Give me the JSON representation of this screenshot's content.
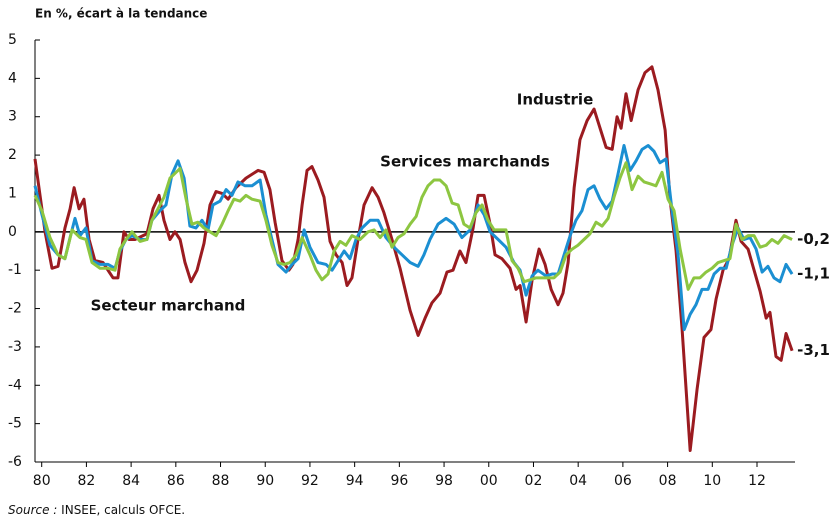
{
  "chart_data": {
    "type": "line",
    "title": "En %, écart à la tendance",
    "source_prefix": "Source :",
    "source": "INSEE, calculs OFCE.",
    "xlim": [
      1979.7,
      2013.7
    ],
    "xticks": [
      {
        "value": 1980,
        "label": "80"
      },
      {
        "value": 1982,
        "label": "82"
      },
      {
        "value": 1984,
        "label": "84"
      },
      {
        "value": 1986,
        "label": "86"
      },
      {
        "value": 1988,
        "label": "88"
      },
      {
        "value": 1990,
        "label": "90"
      },
      {
        "value": 1992,
        "label": "92"
      },
      {
        "value": 1994,
        "label": "94"
      },
      {
        "value": 1996,
        "label": "96"
      },
      {
        "value": 1998,
        "label": "98"
      },
      {
        "value": 2000,
        "label": "00"
      },
      {
        "value": 2002,
        "label": "02"
      },
      {
        "value": 2004,
        "label": "04"
      },
      {
        "value": 2006,
        "label": "06"
      },
      {
        "value": 2008,
        "label": "08"
      },
      {
        "value": 2010,
        "label": "10"
      },
      {
        "value": 2012,
        "label": "12"
      }
    ],
    "ylim": [
      -6,
      5
    ],
    "yticks": [
      5,
      4,
      3,
      2,
      1,
      0,
      -1,
      -2,
      -3,
      -4,
      -5,
      -6
    ],
    "zero_line": true,
    "grid": false,
    "series": [
      {
        "name": "Industrie",
        "color": "#9b1b20",
        "end_label": "-3,1",
        "x": [
          1979.7,
          1980.15,
          1980.46,
          1980.73,
          1981.04,
          1981.27,
          1981.45,
          1981.67,
          1981.89,
          1982.12,
          1982.38,
          1982.74,
          1983.19,
          1983.41,
          1983.68,
          1983.91,
          1984.17,
          1984.71,
          1984.98,
          1985.25,
          1985.47,
          1985.74,
          1985.96,
          1986.19,
          1986.41,
          1986.68,
          1986.95,
          1987.26,
          1987.53,
          1987.8,
          1988.07,
          1988.34,
          1988.69,
          1989.14,
          1989.68,
          1989.95,
          1990.21,
          1990.44,
          1990.75,
          1991.06,
          1991.24,
          1991.47,
          1991.65,
          1991.87,
          1992.09,
          1992.36,
          1992.63,
          1992.9,
          1993.17,
          1993.44,
          1993.66,
          1993.88,
          1994.15,
          1994.42,
          1994.78,
          1995.05,
          1995.31,
          1995.67,
          1996.03,
          1996.48,
          1996.84,
          1997.15,
          1997.46,
          1997.82,
          1998.13,
          1998.4,
          1998.71,
          1998.98,
          1999.3,
          1999.52,
          1999.79,
          2000.06,
          2000.28,
          2000.59,
          2000.95,
          2001.22,
          2001.4,
          2001.67,
          2001.94,
          2002.25,
          2002.52,
          2002.79,
          2003.1,
          2003.32,
          2003.55,
          2003.82,
          2004.08,
          2004.4,
          2004.71,
          2004.98,
          2005.25,
          2005.52,
          2005.74,
          2005.92,
          2006.14,
          2006.37,
          2006.68,
          2006.99,
          2007.3,
          2007.57,
          2007.89,
          2008.11,
          2008.38,
          2008.65,
          2009.01,
          2009.32,
          2009.63,
          2009.94,
          2010.17,
          2010.48,
          2010.75,
          2011.06,
          2011.29,
          2011.6,
          2011.82,
          2012.14,
          2012.41,
          2012.58,
          2012.85,
          2013.08,
          2013.3,
          2013.57
        ],
        "values": [
          1.9,
          0,
          -0.95,
          -0.9,
          0.1,
          0.6,
          1.15,
          0.6,
          0.85,
          -0.2,
          -0.75,
          -0.8,
          -1.2,
          -1.2,
          0,
          -0.2,
          -0.2,
          -0.05,
          0.6,
          0.95,
          0.3,
          -0.2,
          0,
          -0.2,
          -0.8,
          -1.3,
          -1,
          -0.3,
          0.7,
          1.05,
          1,
          0.85,
          1.15,
          1.4,
          1.6,
          1.55,
          1.1,
          0.25,
          -0.75,
          -1,
          -0.85,
          -0.2,
          0.7,
          1.6,
          1.7,
          1.35,
          0.9,
          -0.25,
          -0.6,
          -0.8,
          -1.4,
          -1.2,
          -0.2,
          0.7,
          1.15,
          0.9,
          0.5,
          -0.2,
          -0.95,
          -2.05,
          -2.7,
          -2.25,
          -1.85,
          -1.6,
          -1.05,
          -1,
          -0.5,
          -0.8,
          0.1,
          0.95,
          0.95,
          0.2,
          -0.6,
          -0.7,
          -0.95,
          -1.5,
          -1.4,
          -2.35,
          -1.25,
          -0.45,
          -0.85,
          -1.5,
          -1.9,
          -1.6,
          -0.8,
          1.15,
          2.4,
          2.9,
          3.2,
          2.7,
          2.2,
          2.15,
          3,
          2.7,
          3.6,
          2.9,
          3.7,
          4.15,
          4.3,
          3.7,
          2.65,
          0.85,
          -0.5,
          -2.55,
          -5.7,
          -4.1,
          -2.75,
          -2.55,
          -1.75,
          -1,
          -0.7,
          0.3,
          -0.25,
          -0.45,
          -0.9,
          -1.55,
          -2.25,
          -2.1,
          -3.25,
          -3.35,
          -2.65,
          -3.1
        ]
      },
      {
        "name": "Secteur marchand",
        "color": "#1b8fd2",
        "end_label": "-1,1",
        "x": [
          1979.7,
          1980.01,
          1980.37,
          1980.73,
          1981.04,
          1981.27,
          1981.49,
          1981.71,
          1981.98,
          1982.25,
          1982.61,
          1982.97,
          1983.28,
          1983.5,
          1983.77,
          1984.04,
          1984.4,
          1984.71,
          1984.93,
          1985.29,
          1985.56,
          1985.83,
          1986.1,
          1986.37,
          1986.63,
          1986.9,
          1987.17,
          1987.44,
          1987.66,
          1987.98,
          1988.25,
          1988.51,
          1988.78,
          1989.1,
          1989.41,
          1989.77,
          1990.03,
          1990.3,
          1990.57,
          1990.93,
          1991.2,
          1991.47,
          1991.74,
          1992.0,
          1992.36,
          1992.72,
          1992.99,
          1993.26,
          1993.53,
          1993.79,
          1994.06,
          1994.33,
          1994.69,
          1995.05,
          1995.4,
          1995.76,
          1996.12,
          1996.48,
          1996.84,
          1997.1,
          1997.37,
          1997.73,
          1998.09,
          1998.45,
          1998.8,
          1999.16,
          1999.52,
          1999.79,
          2000.06,
          2000.42,
          2000.77,
          2001.13,
          2001.4,
          2001.67,
          2001.94,
          2002.2,
          2002.56,
          2002.83,
          2003.1,
          2003.37,
          2003.64,
          2003.9,
          2004.17,
          2004.44,
          2004.71,
          2004.98,
          2005.25,
          2005.52,
          2005.78,
          2006.05,
          2006.32,
          2006.59,
          2006.86,
          2007.13,
          2007.39,
          2007.66,
          2007.93,
          2008.2,
          2008.47,
          2008.74,
          2009.01,
          2009.27,
          2009.54,
          2009.81,
          2010.08,
          2010.35,
          2010.62,
          2010.88,
          2011.15,
          2011.42,
          2011.69,
          2011.96,
          2012.23,
          2012.49,
          2012.76,
          2013.03,
          2013.3,
          2013.57
        ],
        "values": [
          1.2,
          0.45,
          -0.35,
          -0.6,
          -0.7,
          -0.15,
          0.35,
          -0.1,
          0.1,
          -0.75,
          -0.85,
          -0.85,
          -0.95,
          -0.5,
          -0.2,
          -0.1,
          -0.2,
          -0.2,
          0.3,
          0.55,
          0.7,
          1.5,
          1.85,
          1.4,
          0.15,
          0.1,
          0.3,
          0.05,
          0.7,
          0.8,
          1.1,
          0.95,
          1.3,
          1.2,
          1.2,
          1.35,
          0.45,
          -0.2,
          -0.85,
          -1.05,
          -0.85,
          -0.7,
          0.05,
          -0.4,
          -0.8,
          -0.85,
          -1,
          -0.75,
          -0.5,
          -0.7,
          -0.2,
          0.1,
          0.3,
          0.3,
          -0.15,
          -0.4,
          -0.6,
          -0.8,
          -0.9,
          -0.6,
          -0.2,
          0.2,
          0.35,
          0.2,
          -0.15,
          0.05,
          0.7,
          0.45,
          0,
          -0.2,
          -0.4,
          -0.8,
          -1,
          -1.65,
          -1.15,
          -1,
          -1.15,
          -1.1,
          -1.1,
          -0.6,
          -0.1,
          0.3,
          0.55,
          1.1,
          1.2,
          0.85,
          0.6,
          0.8,
          1.5,
          2.25,
          1.6,
          1.85,
          2.15,
          2.25,
          2.1,
          1.8,
          1.9,
          0.55,
          -0.6,
          -2.55,
          -2.15,
          -1.9,
          -1.5,
          -1.5,
          -1.1,
          -0.95,
          -0.95,
          -0.35,
          0.1,
          -0.2,
          -0.15,
          -0.45,
          -1.05,
          -0.9,
          -1.2,
          -1.3,
          -0.85,
          -1.1
        ]
      },
      {
        "name": "Services marchands",
        "color": "#8dc641",
        "end_label": "-0,2",
        "x": [
          1979.7,
          1980.01,
          1980.37,
          1980.73,
          1981.04,
          1981.36,
          1981.71,
          1981.98,
          1982.25,
          1982.61,
          1982.97,
          1983.28,
          1983.5,
          1983.77,
          1984.04,
          1984.4,
          1984.71,
          1984.93,
          1985.2,
          1985.47,
          1985.74,
          1986.01,
          1986.19,
          1986.46,
          1986.72,
          1986.99,
          1987.26,
          1987.53,
          1987.8,
          1988.07,
          1988.34,
          1988.6,
          1988.87,
          1989.14,
          1989.41,
          1989.77,
          1990.03,
          1990.3,
          1990.57,
          1990.84,
          1991.11,
          1991.38,
          1991.65,
          1992.0,
          1992.27,
          1992.54,
          1992.81,
          1993.08,
          1993.35,
          1993.61,
          1993.88,
          1994.24,
          1994.6,
          1994.87,
          1995.14,
          1995.4,
          1995.67,
          1995.94,
          1996.21,
          1996.48,
          1996.75,
          1997.01,
          1997.28,
          1997.55,
          1997.82,
          1998.09,
          1998.36,
          1998.63,
          1998.89,
          1999.16,
          1999.43,
          1999.7,
          1999.97,
          2000.24,
          2000.5,
          2000.77,
          2001.04,
          2001.31,
          2001.58,
          2001.85,
          2002.12,
          2002.38,
          2002.65,
          2002.92,
          2003.19,
          2003.46,
          2003.73,
          2003.99,
          2004.26,
          2004.53,
          2004.8,
          2005.07,
          2005.34,
          2005.6,
          2005.87,
          2006.14,
          2006.41,
          2006.68,
          2006.95,
          2007.22,
          2007.48,
          2007.75,
          2008.02,
          2008.29,
          2008.56,
          2008.92,
          2009.18,
          2009.45,
          2009.72,
          2009.99,
          2010.26,
          2010.53,
          2010.79,
          2011.06,
          2011.33,
          2011.6,
          2011.87,
          2012.14,
          2012.41,
          2012.67,
          2012.94,
          2013.21,
          2013.57
        ],
        "values": [
          0.95,
          0.55,
          -0.15,
          -0.6,
          -0.7,
          0.05,
          -0.15,
          -0.2,
          -0.8,
          -0.95,
          -0.95,
          -1,
          -0.45,
          -0.2,
          0,
          -0.25,
          -0.2,
          0.3,
          0.6,
          0.9,
          1.4,
          1.55,
          1.65,
          0.85,
          0.2,
          0.25,
          0.1,
          0,
          -0.1,
          0.2,
          0.55,
          0.85,
          0.8,
          0.95,
          0.85,
          0.8,
          0.3,
          -0.35,
          -0.8,
          -0.85,
          -0.8,
          -0.6,
          -0.15,
          -0.6,
          -1,
          -1.25,
          -1.1,
          -0.5,
          -0.25,
          -0.35,
          -0.1,
          -0.2,
          0,
          0.05,
          -0.15,
          0.05,
          -0.4,
          -0.15,
          -0.05,
          0.2,
          0.4,
          0.9,
          1.2,
          1.35,
          1.35,
          1.2,
          0.75,
          0.7,
          0.2,
          0.1,
          0.5,
          0.7,
          0.3,
          0.05,
          0.05,
          0.05,
          -0.75,
          -0.95,
          -1.3,
          -1.25,
          -1.2,
          -1.2,
          -1.2,
          -1.2,
          -1.05,
          -0.6,
          -0.45,
          -0.35,
          -0.2,
          -0.05,
          0.25,
          0.15,
          0.35,
          0.9,
          1.4,
          1.8,
          1.1,
          1.45,
          1.3,
          1.25,
          1.2,
          1.55,
          0.85,
          0.55,
          -0.45,
          -1.5,
          -1.2,
          -1.2,
          -1.05,
          -0.95,
          -0.8,
          -0.75,
          -0.7,
          0.2,
          -0.2,
          -0.1,
          -0.1,
          -0.4,
          -0.35,
          -0.2,
          -0.3,
          -0.1,
          -0.2
        ]
      }
    ]
  }
}
